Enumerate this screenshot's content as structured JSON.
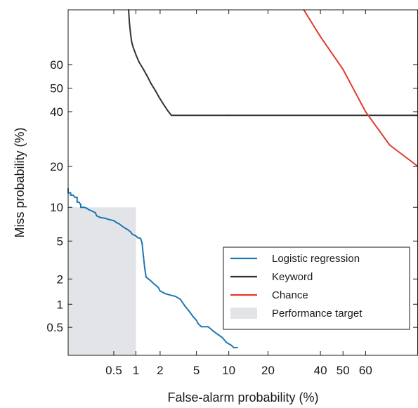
{
  "chart_data": {
    "type": "line",
    "title": "",
    "xlabel": "False-alarm probability (%)",
    "ylabel": "Miss probability (%)",
    "x_scale": "normal-deviate (DET)",
    "y_scale": "normal-deviate (DET)",
    "xlim": [
      0.1,
      80
    ],
    "ylim": [
      0.2,
      80
    ],
    "x_ticks": [
      0.5,
      1,
      2,
      5,
      10,
      20,
      40,
      50,
      60
    ],
    "x_tick_labels": [
      "0.5",
      "1",
      "2",
      "5",
      "10",
      "20",
      "40",
      "50",
      "60"
    ],
    "y_ticks": [
      0.5,
      1,
      2,
      5,
      10,
      20,
      40,
      50,
      60
    ],
    "y_tick_labels": [
      "0.5",
      "1",
      "2",
      "5",
      "10",
      "20",
      "40",
      "50",
      "60"
    ],
    "grid": false,
    "legend_position": "lower-right",
    "series": [
      {
        "name": "Logistic regression",
        "color": "#1f77b4",
        "points": [
          [
            0.1,
            14
          ],
          [
            0.1,
            13
          ],
          [
            0.11,
            13
          ],
          [
            0.11,
            12.5
          ],
          [
            0.12,
            12.5
          ],
          [
            0.13,
            12
          ],
          [
            0.14,
            12
          ],
          [
            0.14,
            11
          ],
          [
            0.15,
            11
          ],
          [
            0.16,
            10.5
          ],
          [
            0.16,
            10
          ],
          [
            0.18,
            10
          ],
          [
            0.2,
            9.8
          ],
          [
            0.21,
            9.6
          ],
          [
            0.24,
            9.3
          ],
          [
            0.27,
            9.0
          ],
          [
            0.28,
            8.5
          ],
          [
            0.32,
            8.2
          ],
          [
            0.37,
            8.1
          ],
          [
            0.42,
            7.9
          ],
          [
            0.5,
            7.7
          ],
          [
            0.55,
            7.4
          ],
          [
            0.6,
            7.2
          ],
          [
            0.65,
            6.9
          ],
          [
            0.72,
            6.6
          ],
          [
            0.78,
            6.4
          ],
          [
            0.85,
            6.1
          ],
          [
            0.9,
            5.8
          ],
          [
            1.0,
            5.6
          ],
          [
            1.05,
            5.4
          ],
          [
            1.15,
            5.3
          ],
          [
            1.2,
            4.8
          ],
          [
            1.25,
            3.5
          ],
          [
            1.3,
            2.6
          ],
          [
            1.35,
            2.1
          ],
          [
            1.5,
            1.95
          ],
          [
            1.7,
            1.75
          ],
          [
            1.9,
            1.6
          ],
          [
            2.0,
            1.45
          ],
          [
            2.3,
            1.35
          ],
          [
            2.6,
            1.3
          ],
          [
            3.0,
            1.25
          ],
          [
            3.4,
            1.15
          ],
          [
            3.8,
            0.95
          ],
          [
            4.2,
            0.82
          ],
          [
            4.6,
            0.7
          ],
          [
            5.0,
            0.62
          ],
          [
            5.2,
            0.56
          ],
          [
            5.6,
            0.51
          ],
          [
            6.5,
            0.51
          ],
          [
            7.2,
            0.45
          ],
          [
            8.0,
            0.4
          ],
          [
            8.8,
            0.36
          ],
          [
            9.5,
            0.31
          ],
          [
            10.5,
            0.28
          ],
          [
            11.0,
            0.26
          ],
          [
            11.8,
            0.26
          ]
        ]
      },
      {
        "name": "Keyword",
        "color": "#333333",
        "points": [
          [
            0.8,
            80
          ],
          [
            0.82,
            76
          ],
          [
            0.85,
            72
          ],
          [
            0.88,
            69
          ],
          [
            0.92,
            67
          ],
          [
            1.0,
            64
          ],
          [
            1.1,
            61
          ],
          [
            1.25,
            58
          ],
          [
            1.4,
            55
          ],
          [
            1.55,
            52
          ],
          [
            1.75,
            49
          ],
          [
            1.95,
            46
          ],
          [
            2.2,
            43
          ],
          [
            2.5,
            40
          ],
          [
            2.7,
            38.5
          ],
          [
            10,
            38.5
          ],
          [
            80,
            38.5
          ]
        ]
      },
      {
        "name": "Chance",
        "color": "#e03c2f",
        "points": [
          [
            33,
            80
          ],
          [
            40,
            71
          ],
          [
            50,
            58
          ],
          [
            60,
            40
          ],
          [
            70,
            27
          ],
          [
            80,
            20
          ]
        ]
      }
    ],
    "regions": [
      {
        "name": "Performance target",
        "color": "#e3e4e8",
        "x_range": [
          0.1,
          1
        ],
        "y_range": [
          0.2,
          10
        ]
      }
    ]
  }
}
